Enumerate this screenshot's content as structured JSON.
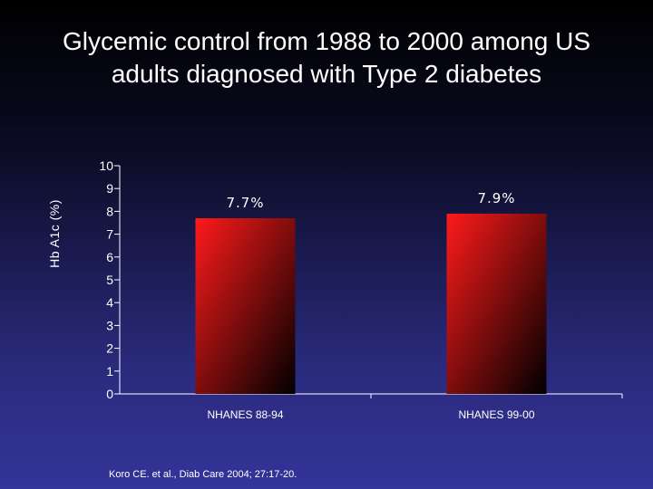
{
  "slide": {
    "title": "Glycemic control from 1988 to 2000 among US\nadults diagnosed with Type 2 diabetes",
    "citation": "Koro CE. et al., Diab Care 2004; 27:17-20."
  },
  "chart_data": {
    "type": "bar",
    "title": "",
    "xlabel": "",
    "ylabel": "Hb A1c (%)",
    "categories": [
      "NHANES 88-94",
      "NHANES 99-00"
    ],
    "values": [
      7.7,
      7.9
    ],
    "data_labels": [
      "7.7%",
      "7.9%"
    ],
    "ylim": [
      0,
      10
    ],
    "yticks": [
      0,
      1,
      2,
      3,
      4,
      5,
      6,
      7,
      8,
      9,
      10
    ],
    "grid": false,
    "legend": "none",
    "bar_color": "#ff1a1a",
    "bar_gradient_end": "#000000",
    "text_color": "#ffffff"
  }
}
